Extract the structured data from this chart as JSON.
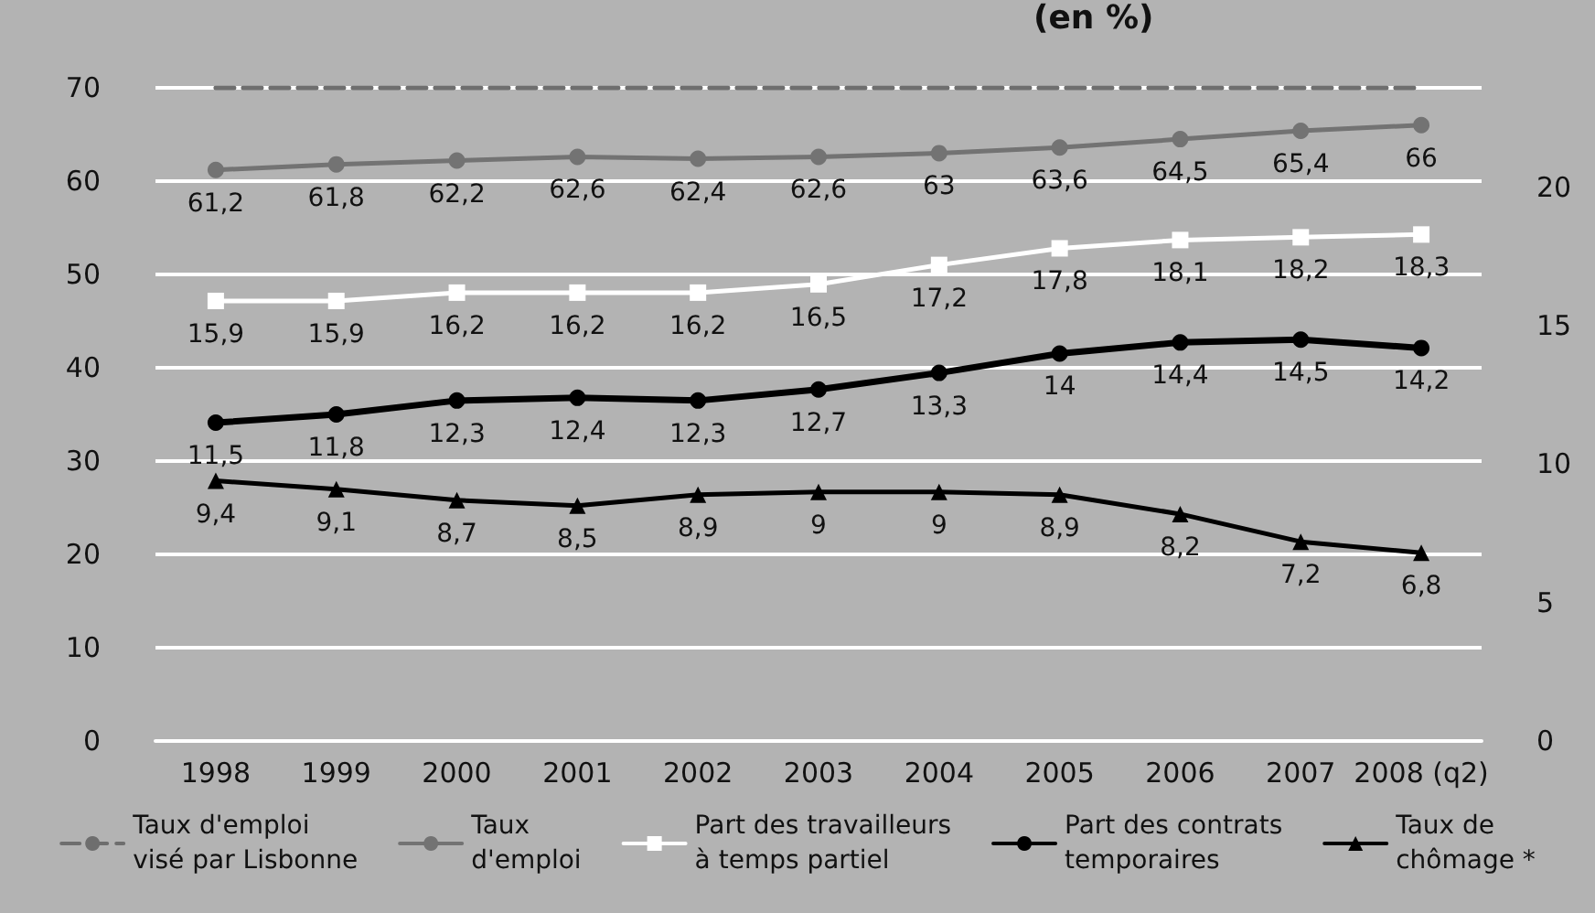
{
  "chart_data": {
    "type": "line",
    "title": "(en %)",
    "categories": [
      "1998",
      "1999",
      "2000",
      "2001",
      "2002",
      "2003",
      "2004",
      "2005",
      "2006",
      "2007",
      "2008 (q2)"
    ],
    "series": [
      {
        "name": "Taux d'emploi\nvisé par Lisbonne",
        "color": "#6e6e6e",
        "values": [
          70,
          70,
          70,
          70,
          70,
          70,
          70,
          70,
          70,
          70,
          70
        ],
        "marker": "none",
        "line_style": "dashed"
      },
      {
        "name": "Taux\nd'emploi",
        "color": "#737373",
        "values": [
          61.2,
          61.8,
          62.2,
          62.6,
          62.4,
          62.6,
          63,
          63.6,
          64.5,
          65.4,
          66
        ],
        "marker": "circle",
        "value_labels": [
          "61,2",
          "61,8",
          "62,2",
          "62,6",
          "62,4",
          "62,6",
          "63",
          "63,6",
          "64,5",
          "65,4",
          "66"
        ]
      },
      {
        "name": "Part des travailleurs\nà temps partiel",
        "color": "#ffffff",
        "axis": "y2",
        "values": [
          15.9,
          15.9,
          16.2,
          16.2,
          16.2,
          16.5,
          17.2,
          17.8,
          18.1,
          18.2,
          18.3
        ],
        "marker": "square",
        "value_labels": [
          "15,9",
          "15,9",
          "16,2",
          "16,2",
          "16,2",
          "16,5",
          "17,2",
          "17,8",
          "18,1",
          "18,2",
          "18,3"
        ]
      },
      {
        "name": "Part des contrats\ntemporaires",
        "color": "#000000",
        "axis": "y2",
        "values": [
          11.5,
          11.8,
          12.3,
          12.4,
          12.3,
          12.7,
          13.3,
          14,
          14.4,
          14.5,
          14.2
        ],
        "marker": "circle",
        "value_labels": [
          "11,5",
          "11,8",
          "12,3",
          "12,4",
          "12,3",
          "12,7",
          "13,3",
          "14",
          "14,4",
          "14,5",
          "14,2"
        ]
      },
      {
        "name": "Taux de\nchômage *",
        "color": "#000000",
        "axis": "y2",
        "values": [
          9.4,
          9.1,
          8.7,
          8.5,
          8.9,
          9,
          9,
          8.9,
          8.2,
          7.2,
          6.8
        ],
        "marker": "triangle",
        "value_labels": [
          "9,4",
          "9,1",
          "8,7",
          "8,5",
          "8,9",
          "9",
          "9",
          "8,9",
          "8,2",
          "7,2",
          "6,8"
        ]
      }
    ],
    "ylim": [
      0,
      70
    ],
    "yticks": [
      0,
      10,
      20,
      30,
      40,
      50,
      60,
      70
    ],
    "y2lim": [
      0,
      23.6
    ],
    "y2ticks": [
      0,
      5,
      10,
      15,
      20
    ],
    "grid": "y",
    "legend": "bottom"
  }
}
